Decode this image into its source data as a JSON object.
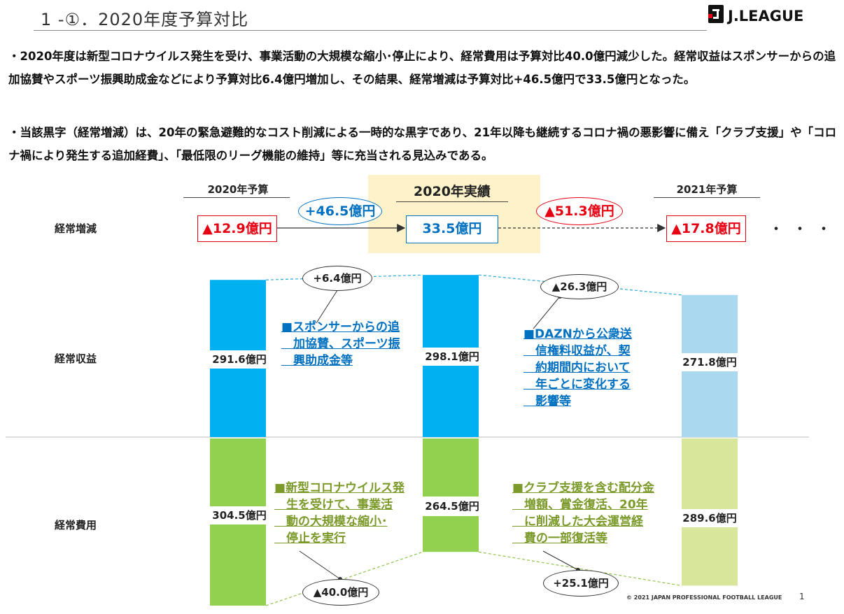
{
  "header": {
    "title": "1 -①．2020年度予算対比",
    "logo_text": "J.LEAGUE"
  },
  "paragraphs": [
    "・2020年度は新型コロナウイルス発生を受け、事業活動の大規模な縮小･停止により、経常費用は予算対比40.0億円減少した。経常収益はスポンサーからの追加協賛やスポーツ振興助成金などにより予算対比6.4億円増加し、その結果、経常増減は予算対比+46.5億円で33.5億円となった。",
    "・当該黒字（経常増減）は、20年の緊急避難的なコスト削減による一時的な黒字であり、21年以降も継続するコロナ禍の悪影響に備え「クラブ支援」や「コロナ禍により発生する追加経費」、「最低限のリーグ機能の維持」等に充当される見込みである。"
  ],
  "chart_data": {
    "type": "bar",
    "categories": [
      "2020年予算",
      "2020年実績",
      "2021年予算"
    ],
    "rows": [
      "経常増減",
      "経常収益",
      "経常費用"
    ],
    "series": [
      {
        "name": "経常収益",
        "values": [
          291.6,
          298.1,
          271.8
        ],
        "labels": [
          "291.6億円",
          "298.1億円",
          "271.8億円"
        ]
      },
      {
        "name": "経常費用",
        "values": [
          304.5,
          264.5,
          289.6
        ],
        "labels": [
          "304.5億円",
          "264.5億円",
          "289.6億円"
        ]
      }
    ],
    "net": {
      "values": [
        -12.9,
        33.5,
        -17.8
      ],
      "labels": [
        "▲12.9億円",
        "33.5億円",
        "▲17.8億円"
      ]
    },
    "net_changes": [
      "+46.5億円",
      "▲51.3億円"
    ],
    "revenue_changes": [
      "+6.4億円",
      "▲26.3億円"
    ],
    "expense_changes": [
      "▲40.0億円",
      "+25.1億円"
    ],
    "ellipsis": "・・・",
    "colors": {
      "revenue_actual": "#00b0f0",
      "revenue_budget_2021": "#a9d8ef",
      "expense_actual": "#92d050",
      "expense_budget_2021": "#d7e69a",
      "highlight": "#fdf2c9",
      "negative": "#e60012",
      "positive": "#0070c0",
      "note_green": "#7b9a2a"
    }
  },
  "notes": {
    "revenue_up": [
      "■スポンサーからの追",
      "　加協賛、スポーツ振",
      "　興助成金等"
    ],
    "revenue_down": [
      "■DAZNから公衆送",
      "　信権料収益が、契",
      "　約期間内において",
      "　年ごとに変化する",
      "　影響等"
    ],
    "expense_down": [
      "■新型コロナウイルス発",
      "　生を受けて、事業活",
      "　動の大規模な縮小･",
      "　停止を実行"
    ],
    "expense_up": [
      "■クラブ支援を含む配分金",
      "　増額、賞金復活、20年",
      "　に削減した大会運営経",
      "　費の一部復活等"
    ]
  },
  "footer": {
    "copyright": "© 2021 JAPAN PROFESSIONAL FOOTBALL LEAGUE",
    "page_number": "1"
  }
}
